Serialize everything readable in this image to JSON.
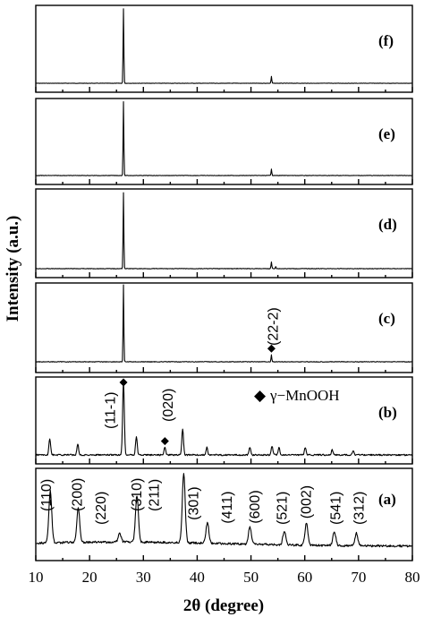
{
  "chart_data": {
    "type": "line",
    "xlabel": "2θ (degree)",
    "ylabel": "Intensity (a.u.)",
    "xlim": [
      10,
      80
    ],
    "x_ticks": [
      "10",
      "20",
      "30",
      "40",
      "50",
      "60",
      "70",
      "80"
    ],
    "grid": false,
    "legend": {
      "marker": "◆",
      "label": "γ−MnOOH",
      "placement": "panel (b), right"
    },
    "panels": [
      {
        "id": "f",
        "label": "(f)",
        "peaks": [
          {
            "x": 26.3,
            "rel": 1.0
          },
          {
            "x": 53.8,
            "rel": 0.09
          }
        ],
        "annotations": [],
        "markers": []
      },
      {
        "id": "e",
        "label": "(e)",
        "peaks": [
          {
            "x": 26.3,
            "rel": 1.0
          },
          {
            "x": 53.8,
            "rel": 0.09
          }
        ],
        "annotations": [],
        "markers": []
      },
      {
        "id": "d",
        "label": "(d)",
        "peaks": [
          {
            "x": 26.3,
            "rel": 1.0
          },
          {
            "x": 53.8,
            "rel": 0.09
          },
          {
            "x": 54.6,
            "rel": 0.03
          }
        ],
        "annotations": [],
        "markers": []
      },
      {
        "id": "c",
        "label": "(c)",
        "peaks": [
          {
            "x": 26.3,
            "rel": 1.0
          },
          {
            "x": 53.8,
            "rel": 0.09
          }
        ],
        "annotations": [
          {
            "text": "(22-2)",
            "x": 55.0
          }
        ],
        "markers": [
          {
            "x": 53.8
          }
        ]
      },
      {
        "id": "b",
        "label": "(b)",
        "peaks": [
          {
            "x": 12.6,
            "rel": 0.22
          },
          {
            "x": 17.8,
            "rel": 0.15
          },
          {
            "x": 26.3,
            "rel": 1.0
          },
          {
            "x": 28.7,
            "rel": 0.25
          },
          {
            "x": 34.0,
            "rel": 0.1
          },
          {
            "x": 37.3,
            "rel": 0.35
          },
          {
            "x": 41.8,
            "rel": 0.1
          },
          {
            "x": 49.8,
            "rel": 0.1
          },
          {
            "x": 53.9,
            "rel": 0.12
          },
          {
            "x": 55.2,
            "rel": 0.1
          },
          {
            "x": 60.1,
            "rel": 0.1
          },
          {
            "x": 65.1,
            "rel": 0.07
          },
          {
            "x": 69.0,
            "rel": 0.06
          }
        ],
        "annotations": [
          {
            "text": "(11-1)",
            "x": 24.7
          },
          {
            "text": "(020)",
            "x": 35.4
          }
        ],
        "markers": [
          {
            "x": 26.3
          },
          {
            "x": 34.0
          }
        ]
      },
      {
        "id": "a",
        "label": "(a)",
        "peaks": [
          {
            "x": 12.7,
            "rel": 0.75
          },
          {
            "x": 17.9,
            "rel": 0.5
          },
          {
            "x": 25.6,
            "rel": 0.12
          },
          {
            "x": 28.8,
            "rel": 0.68
          },
          {
            "x": 37.5,
            "rel": 1.0
          },
          {
            "x": 41.9,
            "rel": 0.3
          },
          {
            "x": 49.8,
            "rel": 0.25
          },
          {
            "x": 56.2,
            "rel": 0.2
          },
          {
            "x": 60.3,
            "rel": 0.32
          },
          {
            "x": 65.5,
            "rel": 0.2
          },
          {
            "x": 69.6,
            "rel": 0.18
          }
        ],
        "annotations": [
          {
            "text": "(110)",
            "x": 12.8
          },
          {
            "text": "(200)",
            "x": 18.6
          },
          {
            "text": "(220)",
            "x": 23.0
          },
          {
            "text": "(310)",
            "x": 29.6
          },
          {
            "text": "(211)",
            "x": 32.9
          },
          {
            "text": "(301)",
            "x": 40.2
          },
          {
            "text": "(411)",
            "x": 46.4
          },
          {
            "text": "(600)",
            "x": 51.6
          },
          {
            "text": "(521)",
            "x": 56.6
          },
          {
            "text": "(002)",
            "x": 61.1
          },
          {
            "text": "(541)",
            "x": 66.6
          },
          {
            "text": "(312)",
            "x": 70.9
          }
        ],
        "markers": []
      }
    ]
  }
}
